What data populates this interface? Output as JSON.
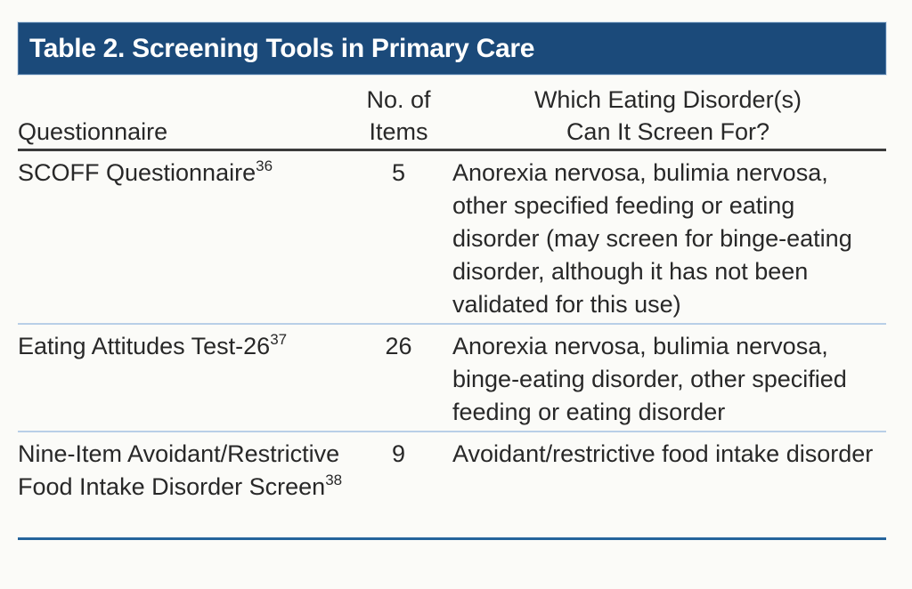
{
  "table": {
    "title": "Table 2. Screening Tools in Primary Care",
    "columns": [
      {
        "label": "Questionnaire"
      },
      {
        "line1": "No. of",
        "line2": "Items"
      },
      {
        "line1": "Which Eating Disorder(s)",
        "line2": "Can It Screen For?"
      }
    ],
    "rows": [
      {
        "questionnaire": "SCOFF Questionnaire",
        "ref": "36",
        "items": "5",
        "screens_for": "Anorexia nervosa, bulimia nervosa, other specified feeding or eating disorder (may screen for binge-eating disorder, although it has not been validated for this use)"
      },
      {
        "questionnaire": "Eating Attitudes Test-26",
        "ref": "37",
        "items": "26",
        "screens_for": "Anorexia nervosa, bulimia nervosa, binge-eating disorder, other specified feeding or eating disorder"
      },
      {
        "questionnaire": "Nine-Item Avoidant/Restrictive Food Intake Disorder Screen",
        "ref": "38",
        "items": "9",
        "screens_for": "Avoidant/restrictive food intake disorder"
      }
    ]
  },
  "colors": {
    "title_bar_background": "#1b4a7a",
    "title_text": "#ffffff",
    "header_rule": "#3b3b3b",
    "row_separator": "#b9cfe7",
    "bottom_rule": "#25649c",
    "body_text": "#282828",
    "page_background": "#fbfbf8"
  }
}
